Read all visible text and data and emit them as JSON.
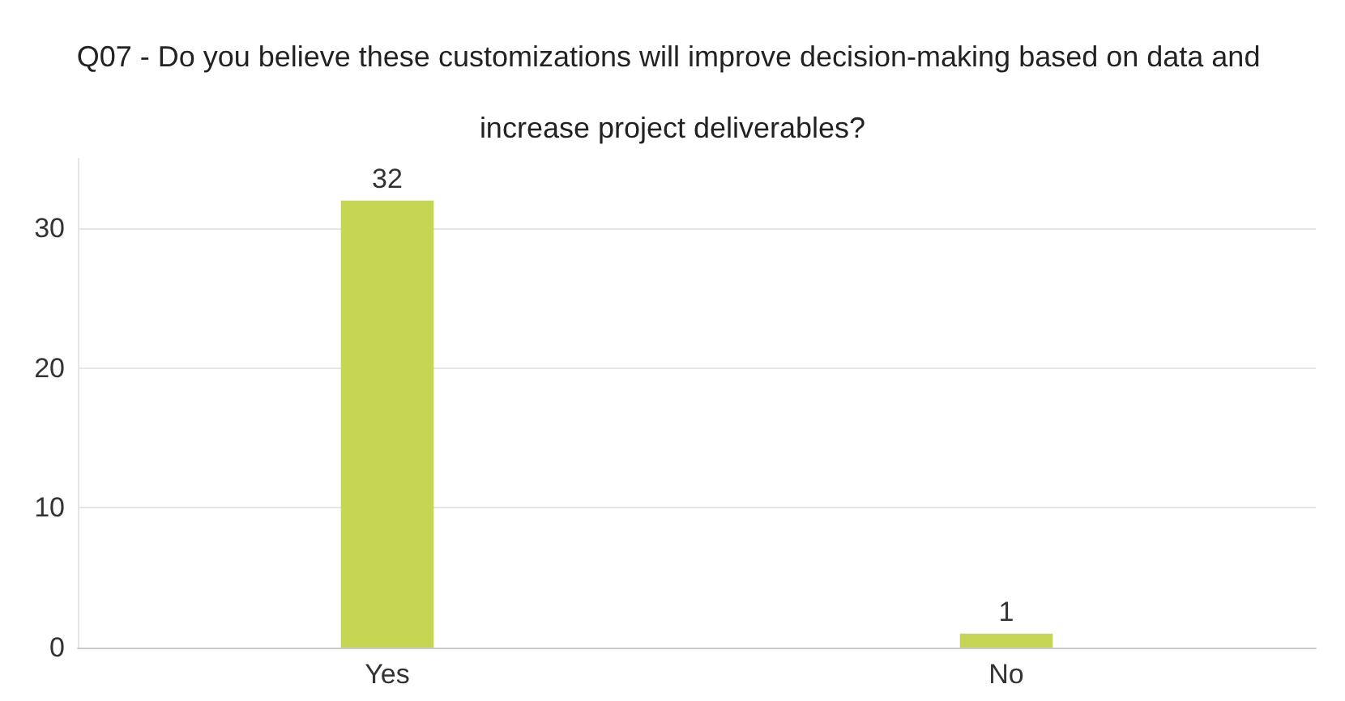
{
  "chart_data": {
    "type": "bar",
    "title": "Q07 - Do you believe these customizations will improve decision-making based on data and increase project deliverables?",
    "categories": [
      "Yes",
      "No"
    ],
    "values": [
      32,
      1
    ],
    "color": "#c5d652",
    "ylim": [
      0,
      35
    ],
    "yticks": [
      0,
      10,
      20,
      30
    ],
    "grid": "y",
    "data_labels": true
  }
}
